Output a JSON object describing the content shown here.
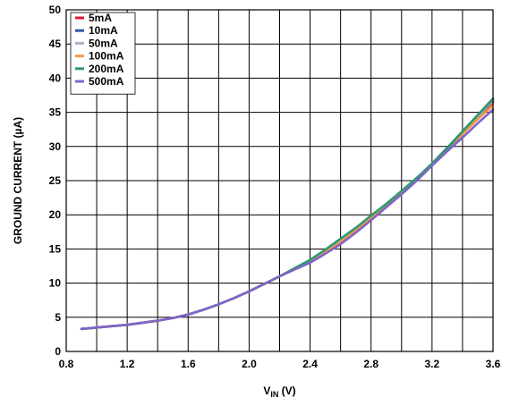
{
  "chart_data": {
    "type": "line",
    "xlabel_main": "V",
    "xlabel_sub": "IN",
    "xlabel_suffix": " (V)",
    "ylabel": "GROUND CURRENT (µA)",
    "xlim": [
      0.8,
      3.6
    ],
    "ylim": [
      0,
      50
    ],
    "xticks": [
      0.8,
      1.2,
      1.6,
      2.0,
      2.4,
      2.8,
      3.2,
      3.6
    ],
    "xtick_labels": [
      "0.8",
      "1.2",
      "1.6",
      "2.0",
      "2.4",
      "2.8",
      "3.2",
      "3.6"
    ],
    "yticks": [
      0,
      5,
      10,
      15,
      20,
      25,
      30,
      35,
      40,
      45,
      50
    ],
    "yticks_labels": [
      "0",
      "5",
      "10",
      "15",
      "20",
      "25",
      "30",
      "35",
      "40",
      "45",
      "50"
    ],
    "x_minor_step": 0.2,
    "grid": true,
    "legend_position": "top-left",
    "series": [
      {
        "name": "5mA",
        "color": "#e0143c",
        "x": [
          0.9,
          1.0,
          1.1,
          1.2,
          1.3,
          1.4,
          1.5,
          1.6,
          1.7,
          1.8,
          1.9,
          2.0,
          2.1,
          2.2,
          2.3,
          2.4,
          2.5,
          2.6,
          2.7,
          2.8,
          2.9,
          3.0,
          3.1,
          3.2,
          3.3,
          3.4,
          3.5,
          3.6
        ],
        "y": [
          3.3,
          3.5,
          3.7,
          3.9,
          4.2,
          4.5,
          4.9,
          5.4,
          6.1,
          6.9,
          7.8,
          8.8,
          9.9,
          11.0,
          12.1,
          13.2,
          14.6,
          16.1,
          17.6,
          19.4,
          21.2,
          23.1,
          25.1,
          27.3,
          29.5,
          31.8,
          34.2,
          36.5
        ]
      },
      {
        "name": "10mA",
        "color": "#2e5c9e",
        "x": [
          0.9,
          1.0,
          1.1,
          1.2,
          1.3,
          1.4,
          1.5,
          1.6,
          1.7,
          1.8,
          1.9,
          2.0,
          2.1,
          2.2,
          2.3,
          2.4,
          2.5,
          2.6,
          2.7,
          2.8,
          2.9,
          3.0,
          3.1,
          3.2,
          3.3,
          3.4,
          3.5,
          3.6
        ],
        "y": [
          3.3,
          3.5,
          3.7,
          3.9,
          4.2,
          4.5,
          4.9,
          5.4,
          6.1,
          6.9,
          7.8,
          8.8,
          9.9,
          11.0,
          12.1,
          13.3,
          14.8,
          16.3,
          17.9,
          19.7,
          21.4,
          23.3,
          25.3,
          27.5,
          29.8,
          32.2,
          34.6,
          37.0
        ]
      },
      {
        "name": "50mA",
        "color": "#a8b4c8",
        "x": [
          0.9,
          1.0,
          1.1,
          1.2,
          1.3,
          1.4,
          1.5,
          1.6,
          1.7,
          1.8,
          1.9,
          2.0,
          2.1,
          2.2,
          2.3,
          2.4,
          2.5,
          2.6,
          2.7,
          2.8,
          2.9,
          3.0,
          3.1,
          3.2,
          3.3,
          3.4,
          3.5,
          3.6
        ],
        "y": [
          3.3,
          3.5,
          3.7,
          3.9,
          4.2,
          4.5,
          4.9,
          5.4,
          6.1,
          6.9,
          7.8,
          8.8,
          9.9,
          11.0,
          12.1,
          13.2,
          14.7,
          16.2,
          17.8,
          19.6,
          21.3,
          23.2,
          25.2,
          27.4,
          29.6,
          32.0,
          34.4,
          36.7
        ]
      },
      {
        "name": "100mA",
        "color": "#f79646",
        "x": [
          0.9,
          1.0,
          1.1,
          1.2,
          1.3,
          1.4,
          1.5,
          1.6,
          1.7,
          1.8,
          1.9,
          2.0,
          2.1,
          2.2,
          2.3,
          2.4,
          2.5,
          2.6,
          2.7,
          2.8,
          2.9,
          3.0,
          3.1,
          3.2,
          3.3,
          3.4,
          3.5,
          3.6
        ],
        "y": [
          3.3,
          3.5,
          3.7,
          3.9,
          4.2,
          4.5,
          4.9,
          5.4,
          6.1,
          6.9,
          7.8,
          8.8,
          9.9,
          11.0,
          12.1,
          13.2,
          14.6,
          16.0,
          17.7,
          19.5,
          21.2,
          23.1,
          25.1,
          27.3,
          29.5,
          31.8,
          34.0,
          36.0
        ]
      },
      {
        "name": "200mA",
        "color": "#2e9a6e",
        "x": [
          0.9,
          1.0,
          1.1,
          1.2,
          1.3,
          1.4,
          1.5,
          1.6,
          1.7,
          1.8,
          1.9,
          2.0,
          2.1,
          2.2,
          2.3,
          2.4,
          2.5,
          2.6,
          2.7,
          2.8,
          2.9,
          3.0,
          3.1,
          3.2,
          3.3,
          3.4,
          3.5,
          3.6
        ],
        "y": [
          3.3,
          3.5,
          3.7,
          3.9,
          4.2,
          4.5,
          4.9,
          5.4,
          6.1,
          6.9,
          7.8,
          8.8,
          9.9,
          11.0,
          12.2,
          13.4,
          14.9,
          16.5,
          18.1,
          19.9,
          21.6,
          23.5,
          25.4,
          27.5,
          29.7,
          32.2,
          34.6,
          36.9
        ]
      },
      {
        "name": "500mA",
        "color": "#8064c8",
        "x": [
          0.9,
          1.0,
          1.1,
          1.2,
          1.3,
          1.4,
          1.5,
          1.6,
          1.7,
          1.8,
          1.9,
          2.0,
          2.1,
          2.2,
          2.3,
          2.4,
          2.5,
          2.6,
          2.7,
          2.8,
          2.9,
          3.0,
          3.1,
          3.2,
          3.3,
          3.4,
          3.5,
          3.6
        ],
        "y": [
          3.3,
          3.5,
          3.7,
          3.9,
          4.2,
          4.5,
          4.9,
          5.4,
          6.1,
          6.9,
          7.8,
          8.8,
          9.9,
          11.0,
          12.0,
          13.0,
          14.3,
          15.7,
          17.4,
          19.2,
          21.1,
          23.0,
          25.0,
          27.2,
          29.3,
          31.3,
          33.4,
          35.4
        ]
      }
    ]
  }
}
